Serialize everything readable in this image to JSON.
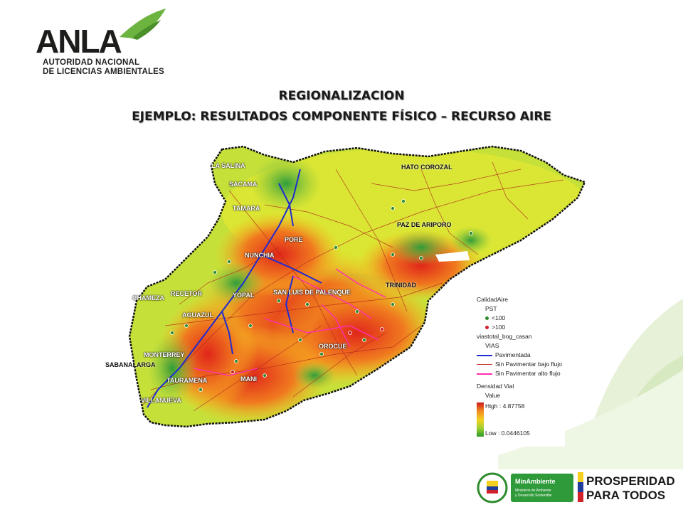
{
  "logo": {
    "brand": "ANLA",
    "subtitle_line1": "AUTORIDAD NACIONAL",
    "subtitle_line2": "DE LICENCIAS AMBIENTALES"
  },
  "title": {
    "line1": "REGIONALIZACION",
    "line2": "EJEMPLO: RESULTADOS COMPONENTE FÍSICO – RECURSO AIRE"
  },
  "map": {
    "places": [
      "LA SALINA",
      "SACAMA",
      "TAMARA",
      "PORE",
      "NUNCHIA",
      "HATO COROZAL",
      "PAZ DE ARIPORO",
      "TRINIDAD",
      "SAN LUIS DE PALENQUE",
      "YOPAL",
      "RECETOR",
      "CHAMEZA",
      "AGUAZUL",
      "MONTERREY",
      "SABANALARGA",
      "TAURAMENA",
      "MANI",
      "OROCUE",
      "VILLANUEVA"
    ]
  },
  "legend": {
    "title": "CalidadAire",
    "pst_label": "PST",
    "low_label": "<100",
    "high_label": ">100",
    "roads_layer": "viastotal_bog_casan",
    "roads_group": "VIAS",
    "paved": "Pavimentada",
    "unpaved_low": "Sin Pavimentar bajo flujo",
    "unpaved_high": "Sin Pavimentar alto flujo",
    "density_title": "Densidad Vial",
    "value_label": "Value",
    "high_value": "High : 4.87758",
    "low_value": "Low : 0.0446105",
    "colors": {
      "pst_low": "#2e8b2e",
      "pst_high": "#d0202a",
      "paved": "#1f2ccf",
      "unpaved_low": "#c0392b",
      "unpaved_high": "#ff2fb0"
    }
  },
  "footer": {
    "minambiente_name": "MinAmbiente",
    "minambiente_sub1": "Ministerio de Ambiente",
    "minambiente_sub2": "y Desarrollo Sostenible",
    "prosperidad_line1": "PROSPERIDAD",
    "prosperidad_line2": "PARA TODOS"
  }
}
